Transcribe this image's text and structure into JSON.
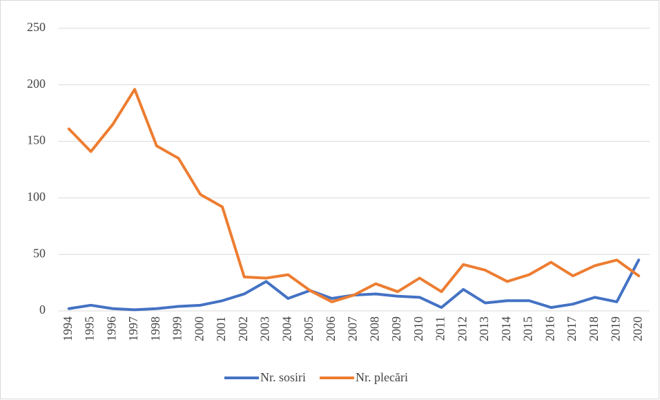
{
  "chart_data": {
    "type": "line",
    "categories": [
      "1994",
      "1995",
      "1996",
      "1997",
      "1998",
      "1999",
      "2000",
      "2001",
      "2002",
      "2003",
      "2004",
      "2005",
      "2006",
      "2007",
      "2008",
      "2009",
      "2010",
      "2011",
      "2012",
      "2013",
      "2014",
      "2015",
      "2016",
      "2017",
      "2018",
      "2019",
      "2020"
    ],
    "series": [
      {
        "name": "Nr. sosiri",
        "color": "#4472c4",
        "values": [
          2,
          5,
          2,
          1,
          2,
          4,
          5,
          9,
          15,
          26,
          11,
          18,
          11,
          14,
          15,
          13,
          12,
          3,
          19,
          7,
          9,
          9,
          3,
          6,
          12,
          8,
          45
        ]
      },
      {
        "name": "Nr. plecări",
        "color": "#ed7d31",
        "values": [
          161,
          141,
          165,
          196,
          146,
          135,
          103,
          92,
          30,
          29,
          32,
          18,
          8,
          14,
          24,
          17,
          29,
          17,
          41,
          36,
          26,
          32,
          43,
          31,
          40,
          45,
          31
        ]
      }
    ],
    "ylim": [
      0,
      250
    ],
    "yticks": [
      0,
      50,
      100,
      150,
      200,
      250
    ],
    "grid": true,
    "legend": "bottom"
  }
}
